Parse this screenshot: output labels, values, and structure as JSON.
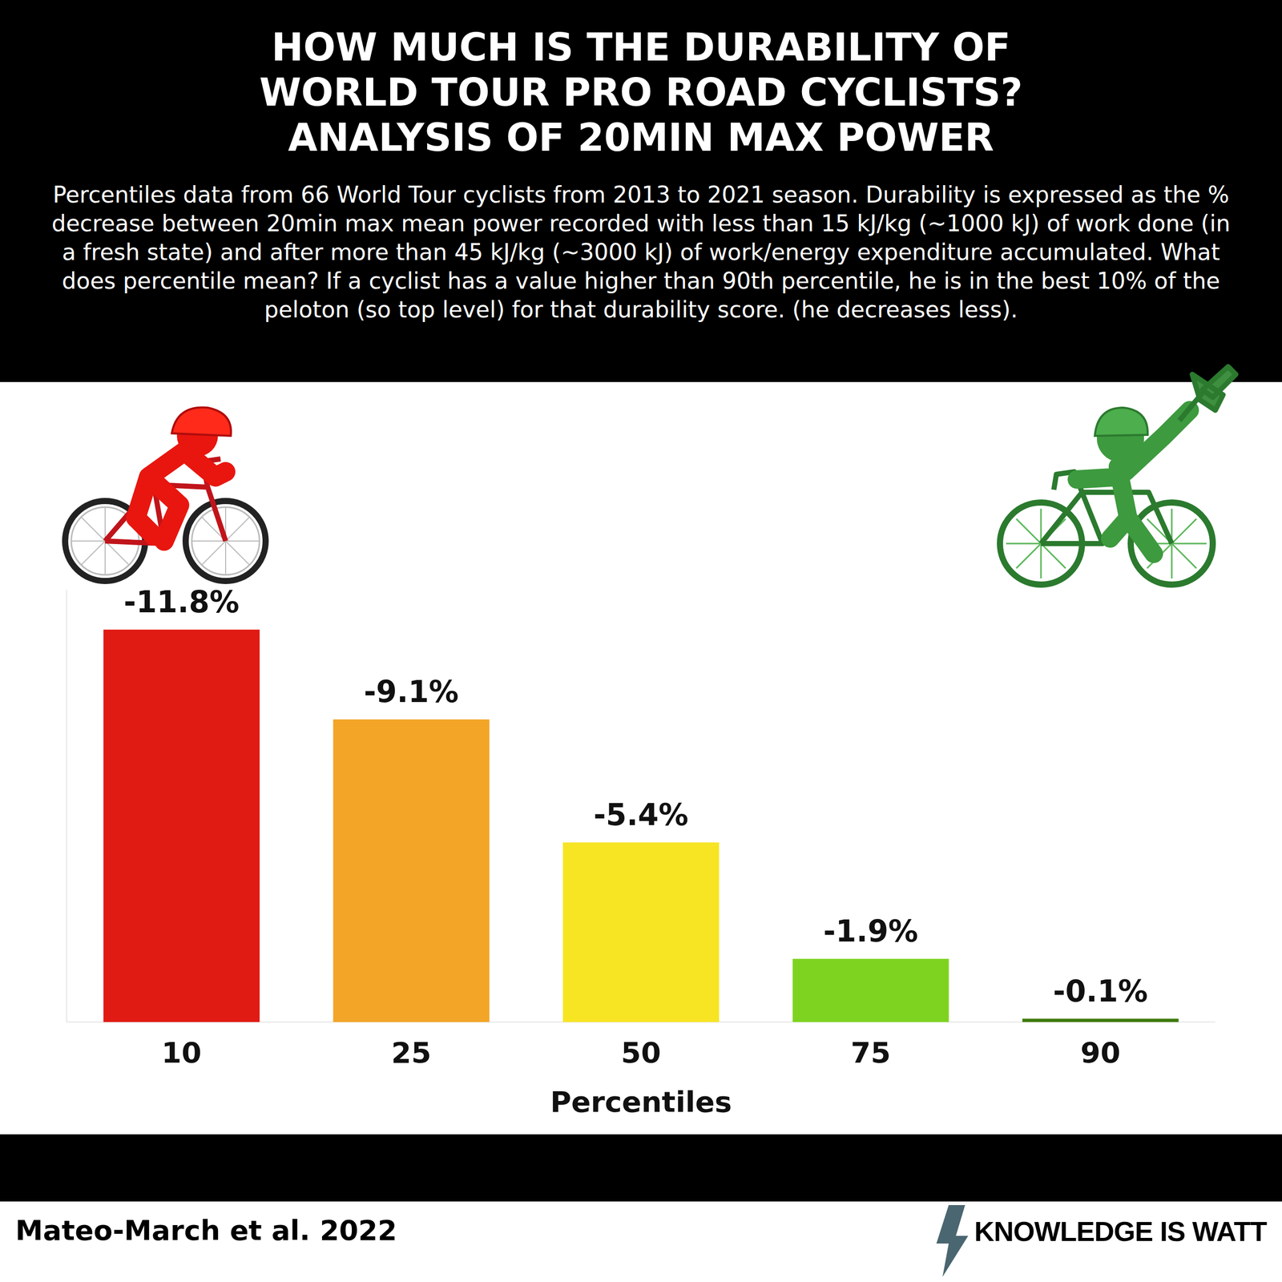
{
  "chart_data": {
    "type": "bar",
    "title": "HOW MUCH IS THE DURABILITY OF\nWORLD TOUR PRO ROAD CYCLISTS?\nANALYSIS OF 20MIN MAX POWER",
    "subtitle": "Percentiles data from 66 World Tour cyclists from 2013 to 2021 season. Durability is expressed as the % decrease between 20min max mean power recorded with less than 15 kJ/kg (~1000 kJ) of work done (in a fresh state) and after more than 45 kJ/kg (~3000 kJ) of work/energy expenditure accumulated. What does percentile mean? If a cyclist has a value higher than 90th percentile, he is in the best 10% of the peloton (so top level) for that durability score. (he decreases less).",
    "x_label": "Percentiles",
    "categories": [
      "10",
      "25",
      "50",
      "75",
      "90"
    ],
    "values": [
      -11.8,
      -9.1,
      -5.4,
      -1.9,
      -0.1
    ],
    "value_labels": [
      "-11.8%",
      "-9.1%",
      "-5.4%",
      "-1.9%",
      "-0.1%"
    ],
    "colors": [
      "#e01b14",
      "#f2a526",
      "#f7e524",
      "#7ed321",
      "#3f7a0a"
    ],
    "ylim": [
      0,
      -13
    ],
    "data_labels": true,
    "tick_labels": "x",
    "source": "Mateo-March et al. 2022",
    "credit": "KNOWLEDGE IS WATT"
  }
}
